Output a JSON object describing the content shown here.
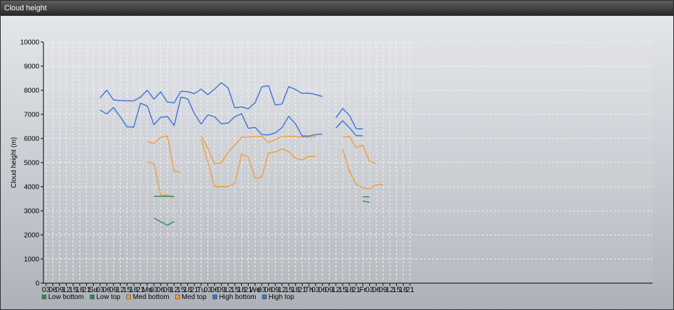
{
  "window": {
    "title": "Cloud height"
  },
  "chart_data": {
    "type": "line",
    "title": "",
    "xlabel": "",
    "ylabel": "Cloud height (m)",
    "ylim": [
      0,
      10000
    ],
    "yticks": [
      0,
      1000,
      2000,
      3000,
      4000,
      5000,
      6000,
      7000,
      8000,
      9000,
      10000
    ],
    "x_unit": "hours from first tick",
    "xlim": [
      -1.2,
      270
    ],
    "x_tick_labels": [
      "03",
      "06",
      "09",
      "12",
      "15",
      "18",
      "21",
      "Su",
      "03",
      "06",
      "09",
      "12",
      "15",
      "18",
      "21",
      "Mo",
      "03",
      "06",
      "09",
      "12",
      "15",
      "18",
      "21",
      "Tu",
      "03",
      "06",
      "09",
      "12",
      "15",
      "18",
      "21",
      "We",
      "03",
      "06",
      "09",
      "12",
      "15",
      "18",
      "21",
      "Th",
      "03",
      "06",
      "09",
      "12",
      "15",
      "18",
      "21",
      "Fr",
      "03",
      "06",
      "09",
      "12",
      "15",
      "18",
      "21"
    ],
    "x_tick_hours": [
      0,
      3,
      6,
      9,
      12,
      15,
      18,
      21,
      24,
      27,
      30,
      33,
      36,
      39,
      42,
      45,
      48,
      51,
      54,
      57,
      60,
      63,
      66,
      69,
      72,
      75,
      78,
      81,
      84,
      87,
      90,
      93,
      96,
      99,
      102,
      105,
      108,
      111,
      114,
      117,
      120,
      123,
      126,
      129,
      132,
      135,
      138,
      141,
      144,
      147,
      150,
      153,
      156,
      159,
      162
    ],
    "grid": true,
    "legend_position": "bottom-left",
    "series": [
      {
        "name": "Low bottom",
        "color": "#2e8b57",
        "segments": [
          [
            [
              48,
              3600
            ],
            [
              51,
              3600
            ],
            [
              54,
              3600
            ],
            [
              57,
              3580
            ]
          ],
          [
            [
              141,
              3400
            ],
            [
              144,
              3360
            ]
          ]
        ]
      },
      {
        "name": "Low top",
        "color": "#2e8b57",
        "segments": [
          [
            [
              48,
              2700
            ],
            [
              54,
              2400
            ],
            [
              57,
              2560
            ]
          ],
          [
            [
              141,
              3580
            ],
            [
              144,
              3580
            ]
          ]
        ]
      },
      {
        "name": "Med bottom",
        "color": "#f39c33",
        "segments": [
          [
            [
              45,
              5020
            ],
            [
              48,
              4960
            ],
            [
              51,
              3660
            ],
            [
              54,
              3640
            ],
            [
              57,
              3620
            ]
          ],
          [
            [
              69,
              5950
            ],
            [
              72,
              5050
            ],
            [
              75,
              3990
            ],
            [
              78,
              4000
            ],
            [
              81,
              4010
            ],
            [
              84,
              4130
            ],
            [
              87,
              5340
            ],
            [
              90,
              5230
            ],
            [
              93,
              4350
            ],
            [
              96,
              4400
            ],
            [
              99,
              5400
            ],
            [
              102,
              5440
            ],
            [
              105,
              5570
            ],
            [
              108,
              5460
            ],
            [
              111,
              5180
            ],
            [
              114,
              5120
            ],
            [
              117,
              5260
            ],
            [
              120,
              5250
            ]
          ],
          [
            [
              132,
              5560
            ],
            [
              135,
              4650
            ],
            [
              138,
              4100
            ],
            [
              141,
              3950
            ],
            [
              144,
              3920
            ],
            [
              147,
              4080
            ],
            [
              150,
              4080
            ]
          ]
        ]
      },
      {
        "name": "Med top",
        "color": "#f39c33",
        "segments": [
          [
            [
              45,
              5870
            ],
            [
              48,
              5800
            ],
            [
              51,
              6050
            ],
            [
              54,
              6100
            ],
            [
              57,
              4640
            ],
            [
              60,
              4600
            ]
          ],
          [
            [
              69,
              6100
            ],
            [
              72,
              5600
            ],
            [
              75,
              4950
            ],
            [
              78,
              4990
            ],
            [
              81,
              5420
            ],
            [
              84,
              5720
            ],
            [
              87,
              6050
            ],
            [
              90,
              6060
            ],
            [
              93,
              6080
            ],
            [
              96,
              6090
            ],
            [
              99,
              5840
            ],
            [
              102,
              5950
            ],
            [
              105,
              6080
            ],
            [
              108,
              6090
            ],
            [
              111,
              6080
            ],
            [
              114,
              6050
            ],
            [
              117,
              6060
            ],
            [
              120,
              6060
            ]
          ],
          [
            [
              132,
              6050
            ],
            [
              135,
              6080
            ],
            [
              138,
              5630
            ],
            [
              141,
              5720
            ],
            [
              144,
              5050
            ],
            [
              147,
              4960
            ]
          ]
        ]
      },
      {
        "name": "High bottom",
        "color": "#3b6fd6",
        "segments": [
          [
            [
              24,
              7180
            ],
            [
              27,
              7020
            ],
            [
              30,
              7280
            ],
            [
              33,
              6900
            ],
            [
              36,
              6480
            ],
            [
              39,
              6470
            ],
            [
              42,
              7460
            ],
            [
              45,
              7350
            ],
            [
              48,
              6570
            ],
            [
              51,
              6880
            ],
            [
              54,
              6910
            ],
            [
              57,
              6540
            ],
            [
              60,
              7710
            ],
            [
              63,
              7650
            ],
            [
              66,
              7030
            ],
            [
              69,
              6600
            ],
            [
              72,
              6980
            ],
            [
              75,
              6900
            ],
            [
              78,
              6610
            ],
            [
              81,
              6640
            ],
            [
              84,
              6900
            ],
            [
              87,
              7030
            ],
            [
              90,
              6420
            ],
            [
              93,
              6460
            ],
            [
              96,
              6160
            ],
            [
              99,
              6150
            ],
            [
              102,
              6230
            ],
            [
              105,
              6450
            ],
            [
              108,
              6920
            ],
            [
              111,
              6610
            ],
            [
              114,
              6100
            ],
            [
              117,
              6100
            ],
            [
              120,
              6160
            ],
            [
              123,
              6180
            ]
          ],
          [
            [
              129,
              6440
            ],
            [
              132,
              6730
            ],
            [
              135,
              6450
            ],
            [
              138,
              6120
            ],
            [
              141,
              6110
            ]
          ]
        ]
      },
      {
        "name": "High top",
        "color": "#3b6fd6",
        "segments": [
          [
            [
              24,
              7680
            ],
            [
              27,
              8000
            ],
            [
              30,
              7600
            ],
            [
              33,
              7570
            ],
            [
              36,
              7560
            ],
            [
              39,
              7560
            ],
            [
              42,
              7710
            ],
            [
              45,
              8000
            ],
            [
              48,
              7630
            ],
            [
              51,
              7930
            ],
            [
              54,
              7510
            ],
            [
              57,
              7480
            ],
            [
              60,
              7960
            ],
            [
              63,
              7940
            ],
            [
              66,
              7860
            ],
            [
              69,
              8050
            ],
            [
              72,
              7820
            ],
            [
              75,
              8050
            ],
            [
              78,
              8310
            ],
            [
              81,
              8100
            ],
            [
              84,
              7270
            ],
            [
              87,
              7310
            ],
            [
              90,
              7230
            ],
            [
              93,
              7480
            ],
            [
              96,
              8140
            ],
            [
              99,
              8190
            ],
            [
              102,
              7390
            ],
            [
              105,
              7430
            ],
            [
              108,
              8150
            ],
            [
              111,
              8030
            ],
            [
              114,
              7870
            ],
            [
              117,
              7880
            ],
            [
              120,
              7820
            ],
            [
              123,
              7740
            ]
          ],
          [
            [
              129,
              6860
            ],
            [
              132,
              7240
            ],
            [
              135,
              6960
            ],
            [
              138,
              6410
            ],
            [
              141,
              6400
            ]
          ]
        ]
      }
    ]
  }
}
